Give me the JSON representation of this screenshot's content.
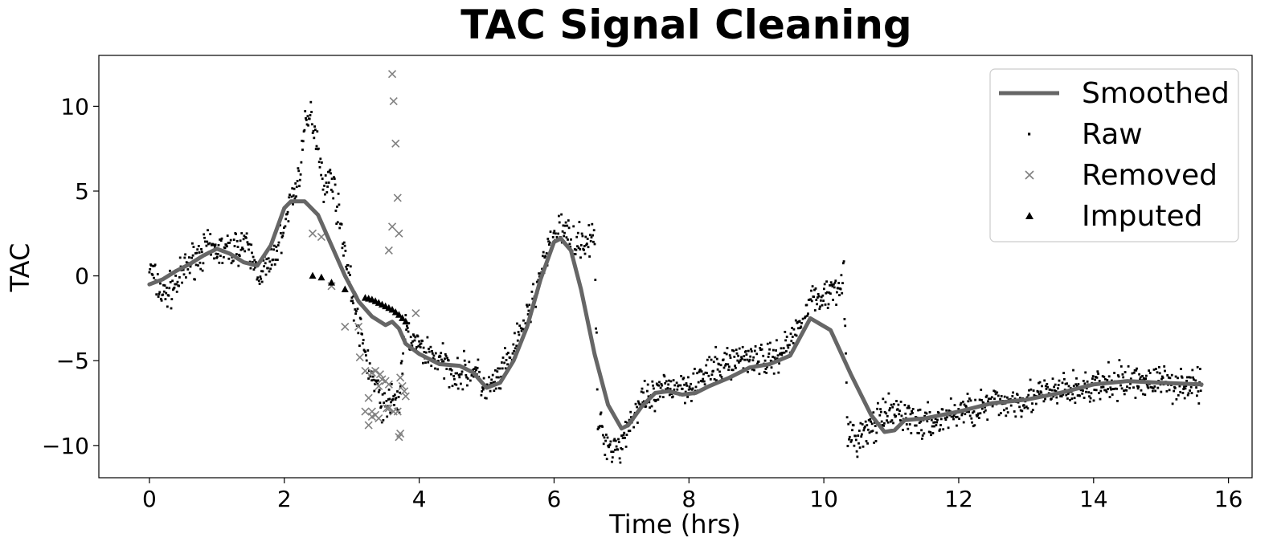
{
  "chart_data": {
    "type": "scatter",
    "title": "TAC Signal Cleaning",
    "xlabel": "Time (hrs)",
    "ylabel": "TAC",
    "xlim": [
      -0.75,
      16.35
    ],
    "ylim": [
      -11.9,
      13.0
    ],
    "x_ticks": [
      0,
      2,
      4,
      6,
      8,
      10,
      12,
      14,
      16
    ],
    "x_tick_labels": [
      "0",
      "2",
      "4",
      "6",
      "8",
      "10",
      "12",
      "14",
      "16"
    ],
    "y_ticks": [
      -10,
      -5,
      0,
      5,
      10
    ],
    "y_tick_labels": [
      "−10",
      "−5",
      "0",
      "5",
      "10"
    ],
    "grid": false,
    "legend_position": "top-right",
    "colors": {
      "smoothed": "#666666",
      "raw": "#000000",
      "removed": "#808080",
      "imputed": "#000000"
    },
    "legend": [
      "Smoothed",
      "Raw",
      "Removed",
      "Imputed"
    ],
    "smoothed": {
      "name": "Smoothed",
      "x": [
        0,
        0.2,
        0.4,
        0.6,
        0.8,
        1.0,
        1.2,
        1.4,
        1.6,
        1.8,
        2.0,
        2.1,
        2.3,
        2.5,
        2.7,
        2.9,
        3.1,
        3.3,
        3.5,
        3.6,
        3.7,
        3.8,
        4.0,
        4.3,
        4.6,
        4.8,
        5.0,
        5.2,
        5.4,
        5.6,
        5.8,
        6.0,
        6.1,
        6.25,
        6.4,
        6.6,
        6.8,
        7.0,
        7.1,
        7.3,
        7.5,
        7.7,
        7.9,
        8.1,
        8.3,
        8.6,
        8.9,
        9.2,
        9.5,
        9.8,
        10.1,
        10.4,
        10.7,
        10.9,
        11.05,
        11.2,
        11.5,
        12.0,
        12.5,
        13.0,
        13.5,
        14.0,
        14.5,
        15.0,
        15.6
      ],
      "y": [
        -0.5,
        -0.2,
        0.3,
        0.7,
        1.2,
        1.6,
        1.3,
        0.8,
        0.6,
        1.8,
        4.0,
        4.4,
        4.4,
        3.6,
        1.8,
        0.0,
        -1.5,
        -2.4,
        -2.9,
        -2.7,
        -3.1,
        -4.0,
        -4.6,
        -5.2,
        -5.3,
        -5.7,
        -6.6,
        -6.3,
        -5.0,
        -3.0,
        -0.2,
        2.0,
        2.2,
        1.5,
        -0.8,
        -4.6,
        -7.6,
        -9.0,
        -8.8,
        -7.7,
        -6.9,
        -6.8,
        -7.0,
        -6.9,
        -6.5,
        -6.0,
        -5.4,
        -5.2,
        -4.7,
        -2.5,
        -3.2,
        -5.8,
        -8.2,
        -9.2,
        -9.1,
        -8.5,
        -8.4,
        -8.0,
        -7.5,
        -7.3,
        -6.9,
        -6.4,
        -6.2,
        -6.3,
        -6.4
      ]
    },
    "raw_trend": {
      "x": [
        0,
        0.2,
        0.4,
        0.6,
        0.8,
        1.0,
        1.2,
        1.4,
        1.6,
        1.8,
        2.0,
        2.1,
        2.2,
        2.3,
        2.4,
        2.5,
        2.6,
        2.7,
        2.9,
        3.0,
        3.1,
        3.3,
        3.5,
        3.6,
        3.7,
        3.8,
        3.9,
        4.0,
        4.3,
        4.6,
        4.8,
        5.0,
        5.2,
        5.4,
        5.6,
        5.8,
        6.0,
        6.1,
        6.3,
        6.5,
        6.6,
        6.65,
        6.8,
        7.0,
        7.1,
        7.3,
        7.5,
        7.7,
        7.9,
        8.1,
        8.3,
        8.6,
        8.9,
        9.2,
        9.5,
        9.8,
        10.0,
        10.2,
        10.3,
        10.35,
        10.5,
        10.7,
        10.9,
        11.1,
        11.5,
        12.0,
        12.5,
        13.0,
        13.5,
        14.0,
        14.5,
        15.0,
        15.6
      ],
      "y": [
        0.5,
        -1.2,
        -0.5,
        0.8,
        1.5,
        1.5,
        1.5,
        2.0,
        0.3,
        0.5,
        3.0,
        4.5,
        5.5,
        8.5,
        9.5,
        7.8,
        5.0,
        6.0,
        1.5,
        -1.0,
        -3.0,
        -6.0,
        -8.0,
        -7.0,
        -7.5,
        -3.2,
        -3.8,
        -4.2,
        -5.0,
        -5.8,
        -5.5,
        -6.8,
        -6.0,
        -4.5,
        -2.5,
        0.0,
        2.4,
        2.8,
        2.0,
        2.1,
        2.1,
        -8.5,
        -10.0,
        -10.0,
        -8.7,
        -7.5,
        -7.2,
        -6.5,
        -6.5,
        -6.2,
        -5.8,
        -5.0,
        -4.7,
        -5.0,
        -4.0,
        -1.5,
        -1.2,
        -0.5,
        0.0,
        -9.5,
        -9.6,
        -9.0,
        -8.3,
        -8.0,
        -8.8,
        -8.0,
        -7.6,
        -7.2,
        -6.8,
        -6.6,
        -6.2,
        -6.2,
        -6.5
      ],
      "spread": 0.7
    },
    "removed": {
      "name": "Removed",
      "x": [
        2.42,
        2.55,
        2.7,
        2.9,
        3.1,
        3.12,
        3.2,
        3.25,
        3.3,
        3.35,
        3.2,
        3.25,
        3.3,
        3.4,
        3.42,
        3.45,
        3.5,
        3.52,
        3.55,
        3.3,
        3.35,
        3.4,
        3.55,
        3.6,
        3.6,
        3.62,
        3.65,
        3.68,
        3.7,
        3.72,
        3.75,
        3.78,
        3.8,
        3.55,
        3.62,
        3.68,
        3.95,
        3.7,
        3.72
      ],
      "y": [
        2.5,
        2.3,
        -0.6,
        -3.0,
        -3.0,
        -4.8,
        -5.6,
        -7.2,
        -5.7,
        -5.6,
        -8.0,
        -8.8,
        -8.0,
        -6.5,
        -5.8,
        -6.1,
        -6.2,
        -7.8,
        -7.8,
        -8.3,
        -8.2,
        -8.4,
        1.5,
        2.9,
        11.9,
        10.3,
        7.8,
        4.6,
        2.5,
        -6.0,
        -6.5,
        -6.8,
        -7.1,
        -6.4,
        -8.0,
        -8.0,
        -2.2,
        -9.5,
        -9.3
      ]
    },
    "imputed": {
      "name": "Imputed",
      "x": [
        2.42,
        2.55,
        2.7,
        2.9,
        3.05,
        3.2,
        3.25,
        3.3,
        3.35,
        3.4,
        3.45,
        3.5,
        3.55,
        3.6,
        3.65,
        3.7,
        3.75,
        3.8
      ],
      "y": [
        0.0,
        -0.1,
        -0.4,
        -0.8,
        -1.1,
        -1.3,
        -1.35,
        -1.4,
        -1.5,
        -1.6,
        -1.7,
        -1.8,
        -1.9,
        -2.0,
        -2.15,
        -2.3,
        -2.5,
        -2.7
      ]
    }
  }
}
